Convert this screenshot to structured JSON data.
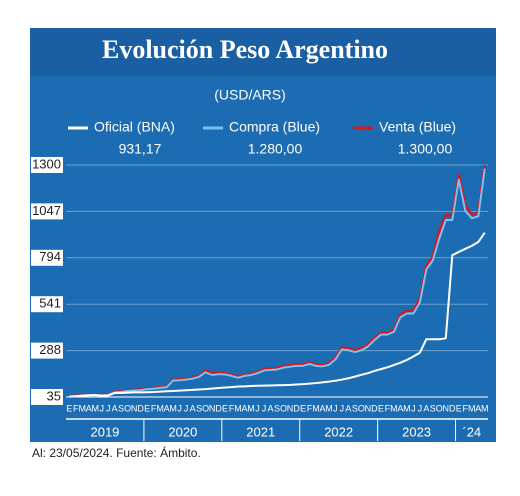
{
  "chart_data": {
    "type": "line",
    "title": "Evolución Peso Argentino",
    "subtitle": "(USD/ARS)",
    "footnote": "Al: 23/05/2024. Fuente: Ámbito.",
    "categories": [
      "E",
      "F",
      "M",
      "A",
      "M",
      "J",
      "J",
      "A",
      "S",
      "O",
      "N",
      "D",
      "E",
      "F",
      "M",
      "A",
      "M",
      "J",
      "J",
      "A",
      "S",
      "O",
      "N",
      "D",
      "E",
      "F",
      "M",
      "A",
      "M",
      "J",
      "J",
      "A",
      "S",
      "O",
      "N",
      "D",
      "E",
      "F",
      "M",
      "A",
      "M",
      "J",
      "J",
      "A",
      "S",
      "O",
      "N",
      "D",
      "E",
      "F",
      "M",
      "A",
      "M",
      "J",
      "J",
      "A",
      "S",
      "O",
      "N",
      "D",
      "E",
      "F",
      "M",
      "A",
      "M"
    ],
    "years": [
      "2019",
      "2020",
      "2021",
      "2022",
      "2023",
      "´24"
    ],
    "ylim": [
      35,
      1300
    ],
    "yticks": [
      35,
      288,
      541,
      794,
      1047,
      1300
    ],
    "grid": true,
    "series": [
      {
        "name": "Oficial (BNA)",
        "color": "#ffffff",
        "latest": "931,17",
        "values": [
          37,
          39,
          42,
          44,
          45,
          42,
          43,
          57,
          57,
          59,
          60,
          60,
          61,
          62,
          64,
          66,
          68,
          70,
          72,
          74,
          76,
          78,
          81,
          84,
          87,
          89,
          92,
          93,
          95,
          96,
          97,
          98,
          99,
          100,
          101,
          103,
          105,
          108,
          111,
          115,
          119,
          124,
          130,
          137,
          146,
          156,
          165,
          177,
          187,
          197,
          209,
          222,
          237,
          256,
          276,
          350,
          350,
          350,
          355,
          808,
          826,
          843,
          859,
          880,
          931.17
        ]
      },
      {
        "name": "Compra (Blue)",
        "color": "#7cc0f0",
        "latest": "1.280,00",
        "values": [
          38,
          40,
          43,
          46,
          46,
          44,
          46,
          60,
          63,
          68,
          70,
          72,
          78,
          80,
          85,
          88,
          125,
          126,
          130,
          135,
          145,
          170,
          155,
          160,
          158,
          150,
          140,
          150,
          155,
          165,
          180,
          182,
          185,
          195,
          200,
          205,
          205,
          215,
          205,
          202,
          210,
          240,
          295,
          290,
          280,
          290,
          310,
          345,
          375,
          375,
          390,
          470,
          490,
          490,
          550,
          730,
          780,
          900,
          1000,
          1000,
          1220,
          1050,
          1010,
          1020,
          1280
        ]
      },
      {
        "name": "Venta (Blue)",
        "color": "#d7191c",
        "latest": "1.300,00",
        "values": [
          39,
          41,
          45,
          48,
          48,
          46,
          48,
          63,
          66,
          72,
          74,
          76,
          82,
          84,
          89,
          92,
          130,
          131,
          135,
          140,
          150,
          180,
          165,
          168,
          165,
          157,
          147,
          157,
          162,
          172,
          188,
          190,
          193,
          203,
          208,
          213,
          213,
          223,
          213,
          210,
          218,
          250,
          305,
          300,
          290,
          300,
          320,
          355,
          385,
          385,
          400,
          485,
          505,
          505,
          570,
          750,
          800,
          940,
          1025,
          1025,
          1245,
          1080,
          1030,
          1040,
          1300
        ]
      }
    ]
  }
}
